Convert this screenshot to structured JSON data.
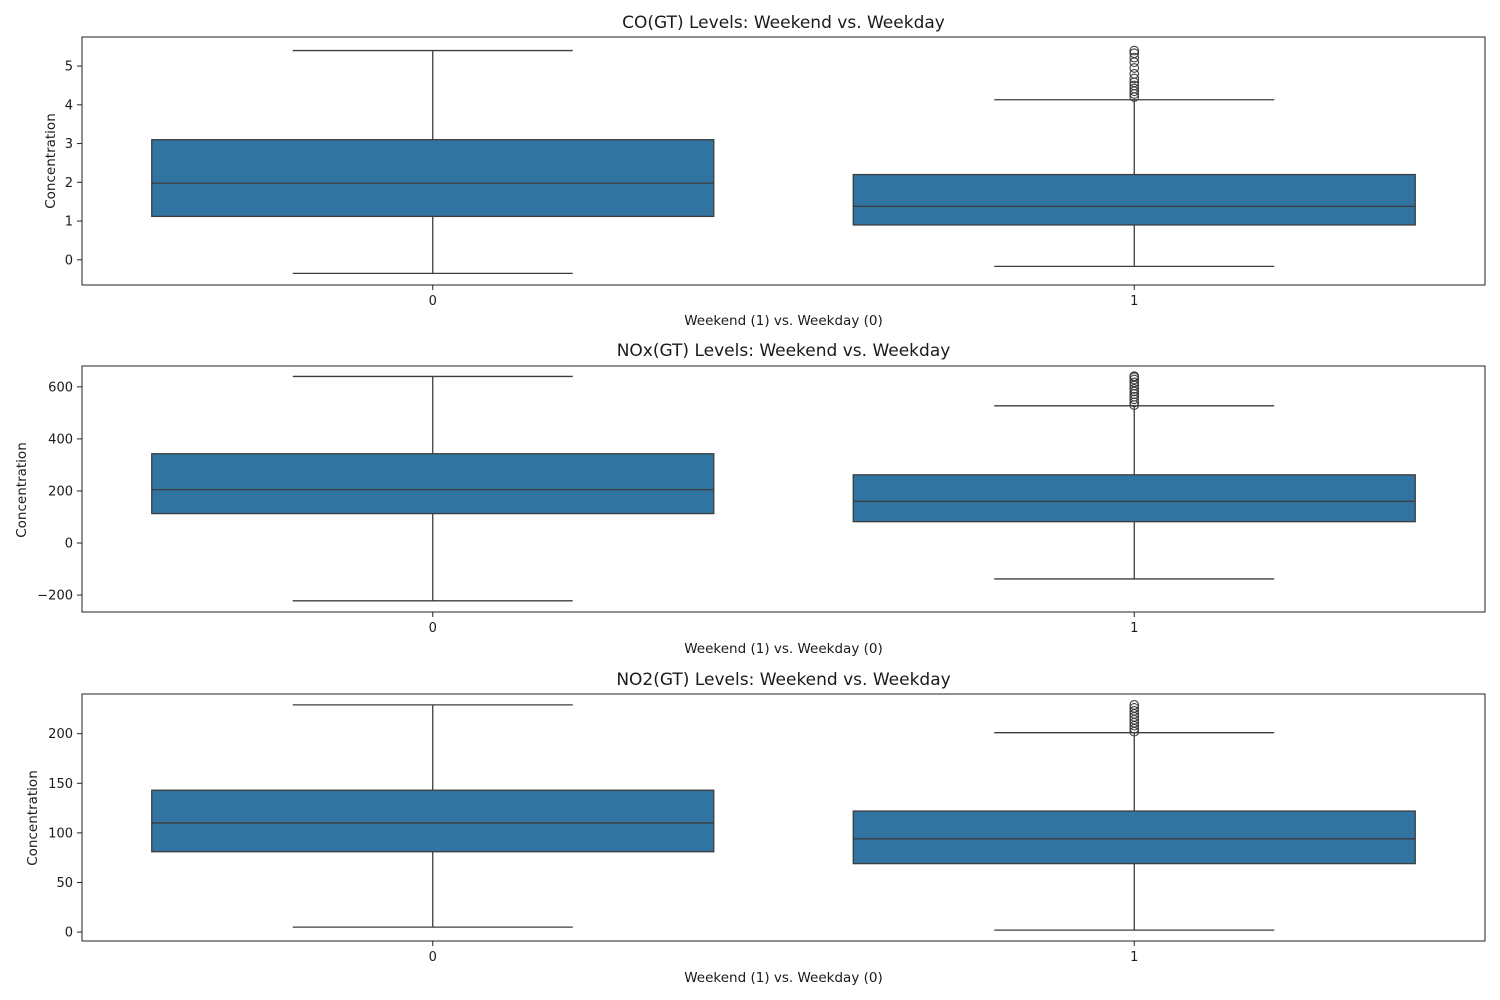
{
  "chart_data": [
    {
      "type": "box",
      "title": "CO(GT) Levels: Weekend vs. Weekday",
      "xlabel": "Weekend (1) vs. Weekday (0)",
      "ylabel": "Concentration",
      "categories": [
        "0",
        "1"
      ],
      "ylim": [
        -0.65,
        5.75
      ],
      "yticks": [
        0,
        1,
        2,
        3,
        4,
        5
      ],
      "box_color": "#3274a1",
      "boxes": [
        {
          "category": "0",
          "whisker_low": -0.35,
          "q1": 1.12,
          "median": 1.98,
          "q3": 3.1,
          "whisker_high": 5.4,
          "outliers": []
        },
        {
          "category": "1",
          "whisker_low": -0.17,
          "q1": 0.9,
          "median": 1.38,
          "q3": 2.2,
          "whisker_high": 4.13,
          "outliers": [
            4.2,
            4.28,
            4.35,
            4.42,
            4.5,
            4.58,
            4.68,
            4.8,
            4.95,
            5.1,
            5.22,
            5.33,
            5.4
          ]
        }
      ]
    },
    {
      "type": "box",
      "title": "NOx(GT) Levels: Weekend vs. Weekday",
      "xlabel": "Weekend (1) vs. Weekday (0)",
      "ylabel": "Concentration",
      "categories": [
        "0",
        "1"
      ],
      "ylim": [
        -265,
        680
      ],
      "yticks": [
        -200,
        0,
        200,
        400,
        600
      ],
      "box_color": "#3274a1",
      "boxes": [
        {
          "category": "0",
          "whisker_low": -222,
          "q1": 113,
          "median": 205,
          "q3": 343,
          "whisker_high": 640,
          "outliers": []
        },
        {
          "category": "1",
          "whisker_low": -138,
          "q1": 82,
          "median": 160,
          "q3": 262,
          "whisker_high": 527,
          "outliers": [
            530,
            540,
            552,
            562,
            572,
            582,
            592,
            605,
            617,
            628,
            637,
            641
          ]
        }
      ]
    },
    {
      "type": "box",
      "title": "NO2(GT) Levels: Weekend vs. Weekday",
      "xlabel": "Weekend (1) vs. Weekday (0)",
      "ylabel": "Concentration",
      "categories": [
        "0",
        "1"
      ],
      "ylim": [
        -9,
        240
      ],
      "yticks": [
        0,
        50,
        100,
        150,
        200
      ],
      "box_color": "#3274a1",
      "boxes": [
        {
          "category": "0",
          "whisker_low": 5,
          "q1": 81,
          "median": 110,
          "q3": 143,
          "whisker_high": 229,
          "outliers": []
        },
        {
          "category": "1",
          "whisker_low": 2,
          "q1": 69,
          "median": 94,
          "q3": 122,
          "whisker_high": 201,
          "outliers": [
            202,
            205,
            208,
            211,
            214,
            217,
            220,
            223,
            226,
            229
          ]
        }
      ]
    }
  ]
}
